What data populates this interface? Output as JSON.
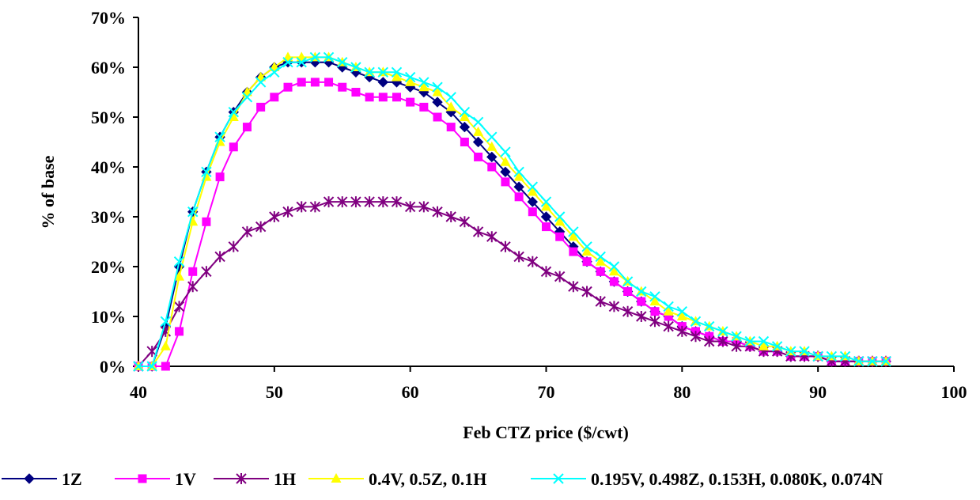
{
  "chart_data": {
    "type": "line",
    "title": "",
    "xlabel": "Feb CTZ price ($/cwt)",
    "ylabel": "% of base",
    "xlim": [
      40,
      100
    ],
    "ylim": [
      0,
      0.7
    ],
    "x_ticks": [
      40,
      50,
      60,
      70,
      80,
      90,
      100
    ],
    "y_ticks": [
      0,
      0.1,
      0.2,
      0.3,
      0.4,
      0.5,
      0.6,
      0.7
    ],
    "y_tick_labels": [
      "0%",
      "10%",
      "20%",
      "30%",
      "40%",
      "50%",
      "60%",
      "70%"
    ],
    "x_tick_labels": [
      "40",
      "50",
      "60",
      "70",
      "80",
      "90",
      "100"
    ],
    "grid": false,
    "legend_position": "bottom",
    "x": [
      40,
      41,
      42,
      43,
      44,
      45,
      46,
      47,
      48,
      49,
      50,
      51,
      52,
      53,
      54,
      55,
      56,
      57,
      58,
      59,
      60,
      61,
      62,
      63,
      64,
      65,
      66,
      67,
      68,
      69,
      70,
      71,
      72,
      73,
      74,
      75,
      76,
      77,
      78,
      79,
      80,
      81,
      82,
      83,
      84,
      85,
      86,
      87,
      88,
      89,
      90,
      91,
      92,
      93,
      94,
      95
    ],
    "series": [
      {
        "name": "1Z",
        "color": "#000080",
        "marker": "diamond",
        "values": [
          0,
          0,
          0.08,
          0.2,
          0.31,
          0.39,
          0.46,
          0.51,
          0.55,
          0.58,
          0.6,
          0.61,
          0.61,
          0.61,
          0.61,
          0.6,
          0.59,
          0.58,
          0.57,
          0.57,
          0.56,
          0.55,
          0.53,
          0.51,
          0.48,
          0.45,
          0.42,
          0.39,
          0.36,
          0.33,
          0.3,
          0.27,
          0.24,
          0.21,
          0.19,
          0.17,
          0.15,
          0.13,
          0.11,
          0.1,
          0.08,
          0.07,
          0.06,
          0.05,
          0.05,
          0.04,
          0.03,
          0.03,
          0.02,
          0.02,
          0.02,
          0.01,
          0.01,
          0.01,
          0.01,
          0.01
        ]
      },
      {
        "name": "1V",
        "color": "#ff00ff",
        "marker": "square",
        "values": [
          0,
          0,
          0,
          0.07,
          0.19,
          0.29,
          0.38,
          0.44,
          0.48,
          0.52,
          0.54,
          0.56,
          0.57,
          0.57,
          0.57,
          0.56,
          0.55,
          0.54,
          0.54,
          0.54,
          0.53,
          0.52,
          0.5,
          0.48,
          0.45,
          0.42,
          0.4,
          0.37,
          0.34,
          0.31,
          0.28,
          0.26,
          0.23,
          0.21,
          0.19,
          0.17,
          0.15,
          0.13,
          0.11,
          0.1,
          0.08,
          0.07,
          0.06,
          0.05,
          0.05,
          0.04,
          0.03,
          0.03,
          0.02,
          0.02,
          0.02,
          0.01,
          0.01,
          0.01,
          0.01,
          0.01
        ]
      },
      {
        "name": "1H",
        "color": "#800080",
        "marker": "star",
        "values": [
          0,
          0.03,
          0.07,
          0.12,
          0.16,
          0.19,
          0.22,
          0.24,
          0.27,
          0.28,
          0.3,
          0.31,
          0.32,
          0.32,
          0.33,
          0.33,
          0.33,
          0.33,
          0.33,
          0.33,
          0.32,
          0.32,
          0.31,
          0.3,
          0.29,
          0.27,
          0.26,
          0.24,
          0.22,
          0.21,
          0.19,
          0.18,
          0.16,
          0.15,
          0.13,
          0.12,
          0.11,
          0.1,
          0.09,
          0.08,
          0.07,
          0.06,
          0.05,
          0.05,
          0.04,
          0.04,
          0.03,
          0.03,
          0.02,
          0.02,
          0.02,
          0.01,
          0.01,
          0.01,
          0.01,
          0.01
        ]
      },
      {
        "name": "0.4V, 0.5Z, 0.1H",
        "color": "#ffff00",
        "marker": "triangle",
        "values": [
          0,
          0,
          0.04,
          0.18,
          0.29,
          0.38,
          0.45,
          0.5,
          0.55,
          0.58,
          0.6,
          0.62,
          0.62,
          0.62,
          0.62,
          0.61,
          0.6,
          0.59,
          0.59,
          0.58,
          0.57,
          0.56,
          0.55,
          0.52,
          0.5,
          0.47,
          0.44,
          0.41,
          0.38,
          0.35,
          0.32,
          0.29,
          0.26,
          0.23,
          0.21,
          0.19,
          0.17,
          0.15,
          0.13,
          0.11,
          0.1,
          0.09,
          0.08,
          0.07,
          0.06,
          0.05,
          0.04,
          0.04,
          0.03,
          0.03,
          0.02,
          0.02,
          0.02,
          0.01,
          0.01,
          0.01
        ]
      },
      {
        "name": "0.195V, 0.498Z, 0.153H, 0.080K, 0.074N",
        "color": "#00ffff",
        "marker": "x",
        "values": [
          0,
          0,
          0.09,
          0.21,
          0.31,
          0.39,
          0.46,
          0.51,
          0.54,
          0.57,
          0.59,
          0.61,
          0.61,
          0.62,
          0.62,
          0.61,
          0.6,
          0.59,
          0.59,
          0.59,
          0.58,
          0.57,
          0.56,
          0.54,
          0.51,
          0.49,
          0.46,
          0.43,
          0.39,
          0.36,
          0.33,
          0.3,
          0.27,
          0.24,
          0.22,
          0.2,
          0.17,
          0.15,
          0.14,
          0.12,
          0.11,
          0.09,
          0.08,
          0.07,
          0.06,
          0.05,
          0.05,
          0.04,
          0.03,
          0.03,
          0.02,
          0.02,
          0.02,
          0.01,
          0.01,
          0.01
        ]
      }
    ]
  }
}
